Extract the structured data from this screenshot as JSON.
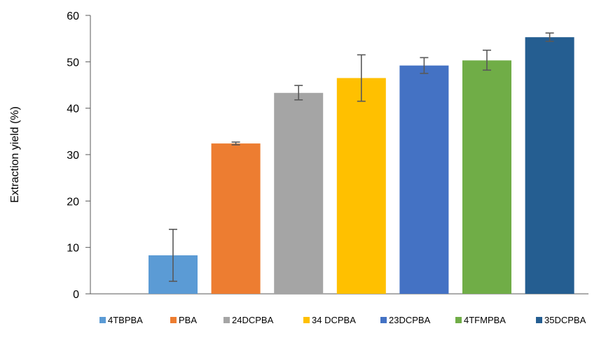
{
  "chart_data": {
    "type": "bar",
    "title": "",
    "xlabel": "",
    "ylabel": "Extraction yield (%)",
    "ylim": [
      0,
      60
    ],
    "yticks": [
      0,
      10,
      20,
      30,
      40,
      50,
      60
    ],
    "grid": false,
    "legend_position": "bottom",
    "series": [
      {
        "name": "4TBPBA",
        "value": 8.3,
        "error_low": 2.7,
        "error_high": 13.9,
        "color": "#5B9BD5"
      },
      {
        "name": "PBA",
        "value": 32.4,
        "error_low": 32.1,
        "error_high": 32.7,
        "color": "#ED7D31"
      },
      {
        "name": "24DCPBA",
        "value": 43.3,
        "error_low": 41.8,
        "error_high": 44.9,
        "color": "#A5A5A5"
      },
      {
        "name": "34 DCPBA",
        "value": 46.5,
        "error_low": 41.5,
        "error_high": 51.5,
        "color": "#FFC000"
      },
      {
        "name": "23DCPBA",
        "value": 49.2,
        "error_low": 47.5,
        "error_high": 50.9,
        "color": "#4472C4"
      },
      {
        "name": "4TFMPBA",
        "value": 50.3,
        "error_low": 48.2,
        "error_high": 52.5,
        "color": "#70AD47"
      },
      {
        "name": "35DCPBA",
        "value": 55.3,
        "error_low": 54.4,
        "error_high": 56.2,
        "color": "#255E91"
      }
    ]
  }
}
